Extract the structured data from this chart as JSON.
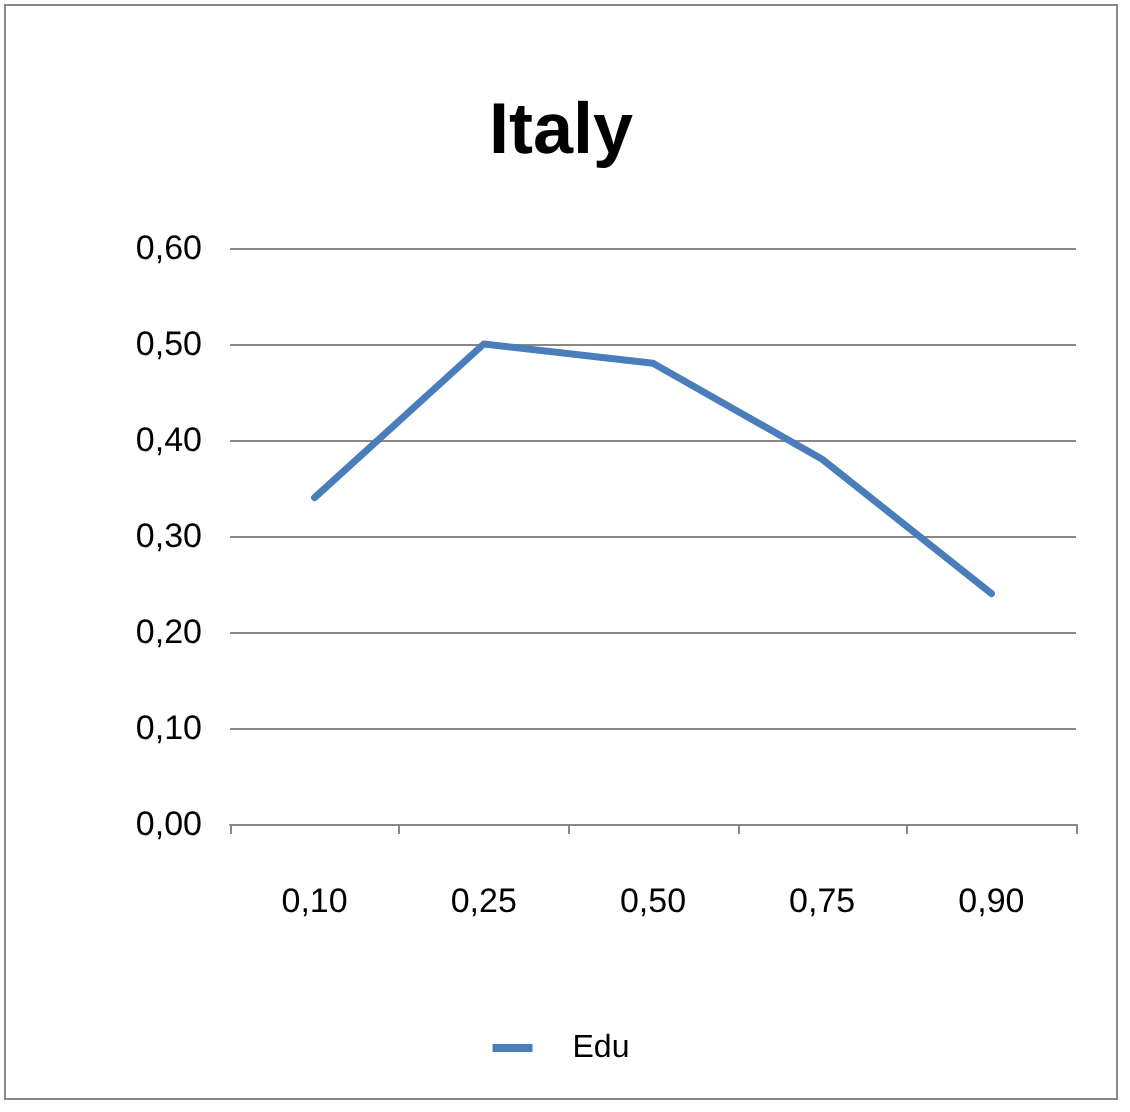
{
  "chart_data": {
    "type": "line",
    "title": "Italy",
    "categories": [
      "0,10",
      "0,25",
      "0,50",
      "0,75",
      "0,90"
    ],
    "series": [
      {
        "name": "Edu",
        "color": "#4a7ebb",
        "values": [
          0.34,
          0.5,
          0.48,
          0.38,
          0.24
        ]
      }
    ],
    "ylim": [
      0,
      0.6
    ],
    "yticks": [
      {
        "value": 0,
        "label": "0,00"
      },
      {
        "value": 0.1,
        "label": "0,10"
      },
      {
        "value": 0.2,
        "label": "0,20"
      },
      {
        "value": 0.3,
        "label": "0,30"
      },
      {
        "value": 0.4,
        "label": "0,40"
      },
      {
        "value": 0.5,
        "label": "0,50"
      },
      {
        "value": 0.6,
        "label": "0,60"
      }
    ],
    "grid": "y",
    "legend": "bottom",
    "marker": "none",
    "line_style": "solid"
  }
}
